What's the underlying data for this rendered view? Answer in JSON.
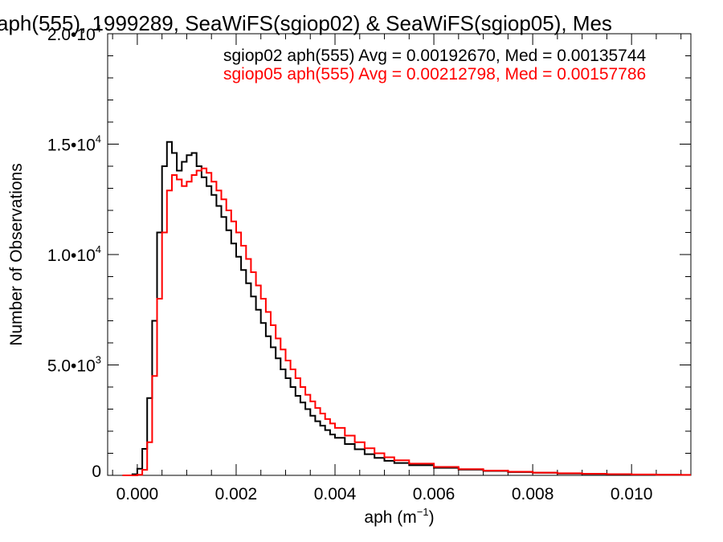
{
  "chart_data": {
    "type": "line",
    "title": "aph(555), 1999289, SeaWiFS(sgiop02) & SeaWiFS(sgiop05), Mes",
    "xlabel": {
      "base": "aph (m",
      "sup": "−1",
      "tail": ")"
    },
    "ylabel": "Number of Observations",
    "xlim": [
      -0.0006,
      0.0112
    ],
    "ylim": [
      0,
      20000
    ],
    "x_ticks": [
      0.0,
      0.002,
      0.004,
      0.006,
      0.008,
      0.01
    ],
    "x_tick_labels": [
      "0.000",
      "0.002",
      "0.004",
      "0.006",
      "0.008",
      "0.010"
    ],
    "y_ticks": [
      0,
      5000,
      10000,
      15000,
      20000
    ],
    "y_tick_labels": [
      {
        "base": "0",
        "sup": ""
      },
      {
        "base": "5.0•10",
        "sup": "3"
      },
      {
        "base": "1.0•10",
        "sup": "4"
      },
      {
        "base": "1.5•10",
        "sup": "4"
      },
      {
        "base": "2.0•10",
        "sup": "4"
      }
    ],
    "annotations": [
      {
        "text": "sgiop02 aph(555) Avg = 0.00192670, Med = 0.00135744",
        "color": "#000000"
      },
      {
        "text": "sgiop05 aph(555) Avg = 0.00212798, Med = 0.00157786",
        "color": "#ff0000"
      }
    ],
    "series": [
      {
        "color": "#000000",
        "points": [
          [
            -0.0003,
            0
          ],
          [
            -0.0001,
            50
          ],
          [
            0.0,
            300
          ],
          [
            0.0001,
            1200
          ],
          [
            0.0002,
            3500
          ],
          [
            0.0003,
            7000
          ],
          [
            0.0004,
            11000
          ],
          [
            0.0005,
            14000
          ],
          [
            0.0006,
            15100
          ],
          [
            0.0007,
            14600
          ],
          [
            0.0008,
            13800
          ],
          [
            0.0009,
            14200
          ],
          [
            0.001,
            14500
          ],
          [
            0.0011,
            14600
          ],
          [
            0.0012,
            14000
          ],
          [
            0.0013,
            13500
          ],
          [
            0.0014,
            13100
          ],
          [
            0.0015,
            12700
          ],
          [
            0.0016,
            12200
          ],
          [
            0.0017,
            11700
          ],
          [
            0.0018,
            11100
          ],
          [
            0.0019,
            10500
          ],
          [
            0.002,
            9900
          ],
          [
            0.0021,
            9300
          ],
          [
            0.0022,
            8700
          ],
          [
            0.0023,
            8100
          ],
          [
            0.0024,
            7500
          ],
          [
            0.0025,
            6900
          ],
          [
            0.0026,
            6300
          ],
          [
            0.0027,
            5800
          ],
          [
            0.0028,
            5300
          ],
          [
            0.0029,
            4800
          ],
          [
            0.003,
            4400
          ],
          [
            0.0031,
            4000
          ],
          [
            0.0032,
            3600
          ],
          [
            0.0033,
            3300
          ],
          [
            0.0034,
            3000
          ],
          [
            0.0035,
            2700
          ],
          [
            0.0036,
            2450
          ],
          [
            0.0037,
            2250
          ],
          [
            0.0038,
            2050
          ],
          [
            0.0039,
            1850
          ],
          [
            0.004,
            1700
          ],
          [
            0.0042,
            1420
          ],
          [
            0.0044,
            1180
          ],
          [
            0.0046,
            960
          ],
          [
            0.0048,
            790
          ],
          [
            0.005,
            660
          ],
          [
            0.0052,
            560
          ],
          [
            0.0055,
            460
          ],
          [
            0.006,
            340
          ],
          [
            0.0065,
            260
          ],
          [
            0.007,
            200
          ],
          [
            0.0075,
            150
          ],
          [
            0.008,
            115
          ],
          [
            0.0085,
            85
          ],
          [
            0.009,
            65
          ],
          [
            0.0095,
            48
          ],
          [
            0.01,
            35
          ],
          [
            0.0105,
            25
          ],
          [
            0.011,
            18
          ]
        ]
      },
      {
        "color": "#ff0000",
        "points": [
          [
            -0.0003,
            0
          ],
          [
            -0.0001,
            0
          ],
          [
            0.0,
            30
          ],
          [
            0.0001,
            250
          ],
          [
            0.0002,
            1500
          ],
          [
            0.0003,
            4500
          ],
          [
            0.0004,
            8000
          ],
          [
            0.0005,
            11000
          ],
          [
            0.0006,
            12900
          ],
          [
            0.0007,
            13600
          ],
          [
            0.0008,
            13400
          ],
          [
            0.0009,
            13100
          ],
          [
            0.001,
            13300
          ],
          [
            0.0011,
            13600
          ],
          [
            0.0012,
            13800
          ],
          [
            0.0013,
            13900
          ],
          [
            0.0014,
            13700
          ],
          [
            0.0015,
            13300
          ],
          [
            0.0016,
            12900
          ],
          [
            0.0017,
            12500
          ],
          [
            0.0018,
            12000
          ],
          [
            0.0019,
            11500
          ],
          [
            0.002,
            11000
          ],
          [
            0.0021,
            10400
          ],
          [
            0.0022,
            9800
          ],
          [
            0.0023,
            9200
          ],
          [
            0.0024,
            8600
          ],
          [
            0.0025,
            8000
          ],
          [
            0.0026,
            7400
          ],
          [
            0.0027,
            6800
          ],
          [
            0.0028,
            6200
          ],
          [
            0.0029,
            5700
          ],
          [
            0.003,
            5200
          ],
          [
            0.0031,
            4800
          ],
          [
            0.0032,
            4400
          ],
          [
            0.0033,
            4000
          ],
          [
            0.0034,
            3650
          ],
          [
            0.0035,
            3350
          ],
          [
            0.0036,
            3050
          ],
          [
            0.0037,
            2800
          ],
          [
            0.0038,
            2550
          ],
          [
            0.0039,
            2350
          ],
          [
            0.004,
            2150
          ],
          [
            0.0042,
            1800
          ],
          [
            0.0044,
            1500
          ],
          [
            0.0046,
            1230
          ],
          [
            0.0048,
            1000
          ],
          [
            0.005,
            820
          ],
          [
            0.0052,
            680
          ],
          [
            0.0055,
            530
          ],
          [
            0.006,
            380
          ],
          [
            0.0065,
            285
          ],
          [
            0.007,
            215
          ],
          [
            0.0075,
            165
          ],
          [
            0.008,
            125
          ],
          [
            0.0085,
            95
          ],
          [
            0.009,
            72
          ],
          [
            0.0095,
            54
          ],
          [
            0.01,
            40
          ],
          [
            0.0105,
            30
          ],
          [
            0.011,
            22
          ]
        ]
      }
    ]
  }
}
